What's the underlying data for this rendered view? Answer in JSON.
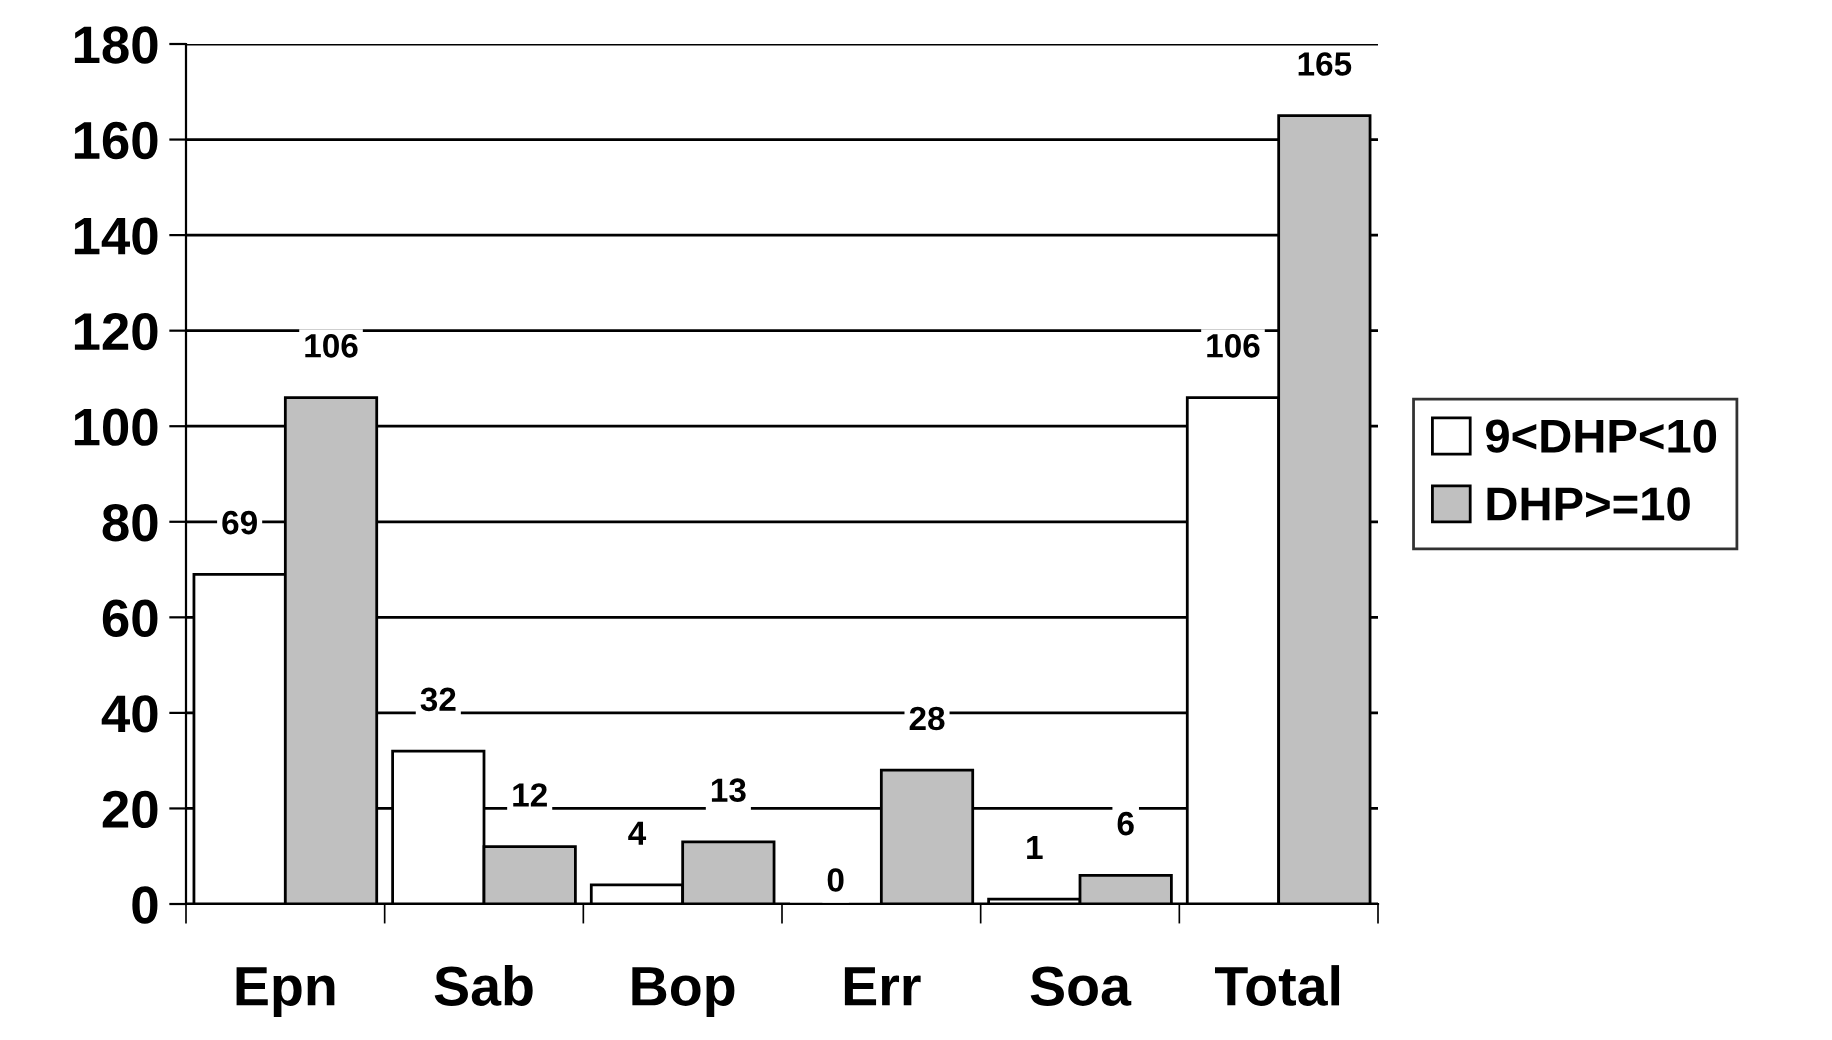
{
  "chart_data": {
    "type": "bar",
    "categories": [
      "Epn",
      "Sab",
      "Bop",
      "Err",
      "Soa",
      "Total"
    ],
    "series": [
      {
        "name": "9<DHP<10",
        "color": "#ffffff",
        "values": [
          69,
          32,
          4,
          0,
          1,
          106
        ]
      },
      {
        "name": "DHP>=10",
        "color": "#c0c0c0",
        "values": [
          106,
          12,
          13,
          28,
          6,
          165
        ]
      }
    ],
    "ylim": [
      0,
      180
    ],
    "yticks": [
      0,
      20,
      40,
      60,
      80,
      100,
      120,
      140,
      160,
      180
    ],
    "grid": "y",
    "legend": "right",
    "data_labels": true
  }
}
